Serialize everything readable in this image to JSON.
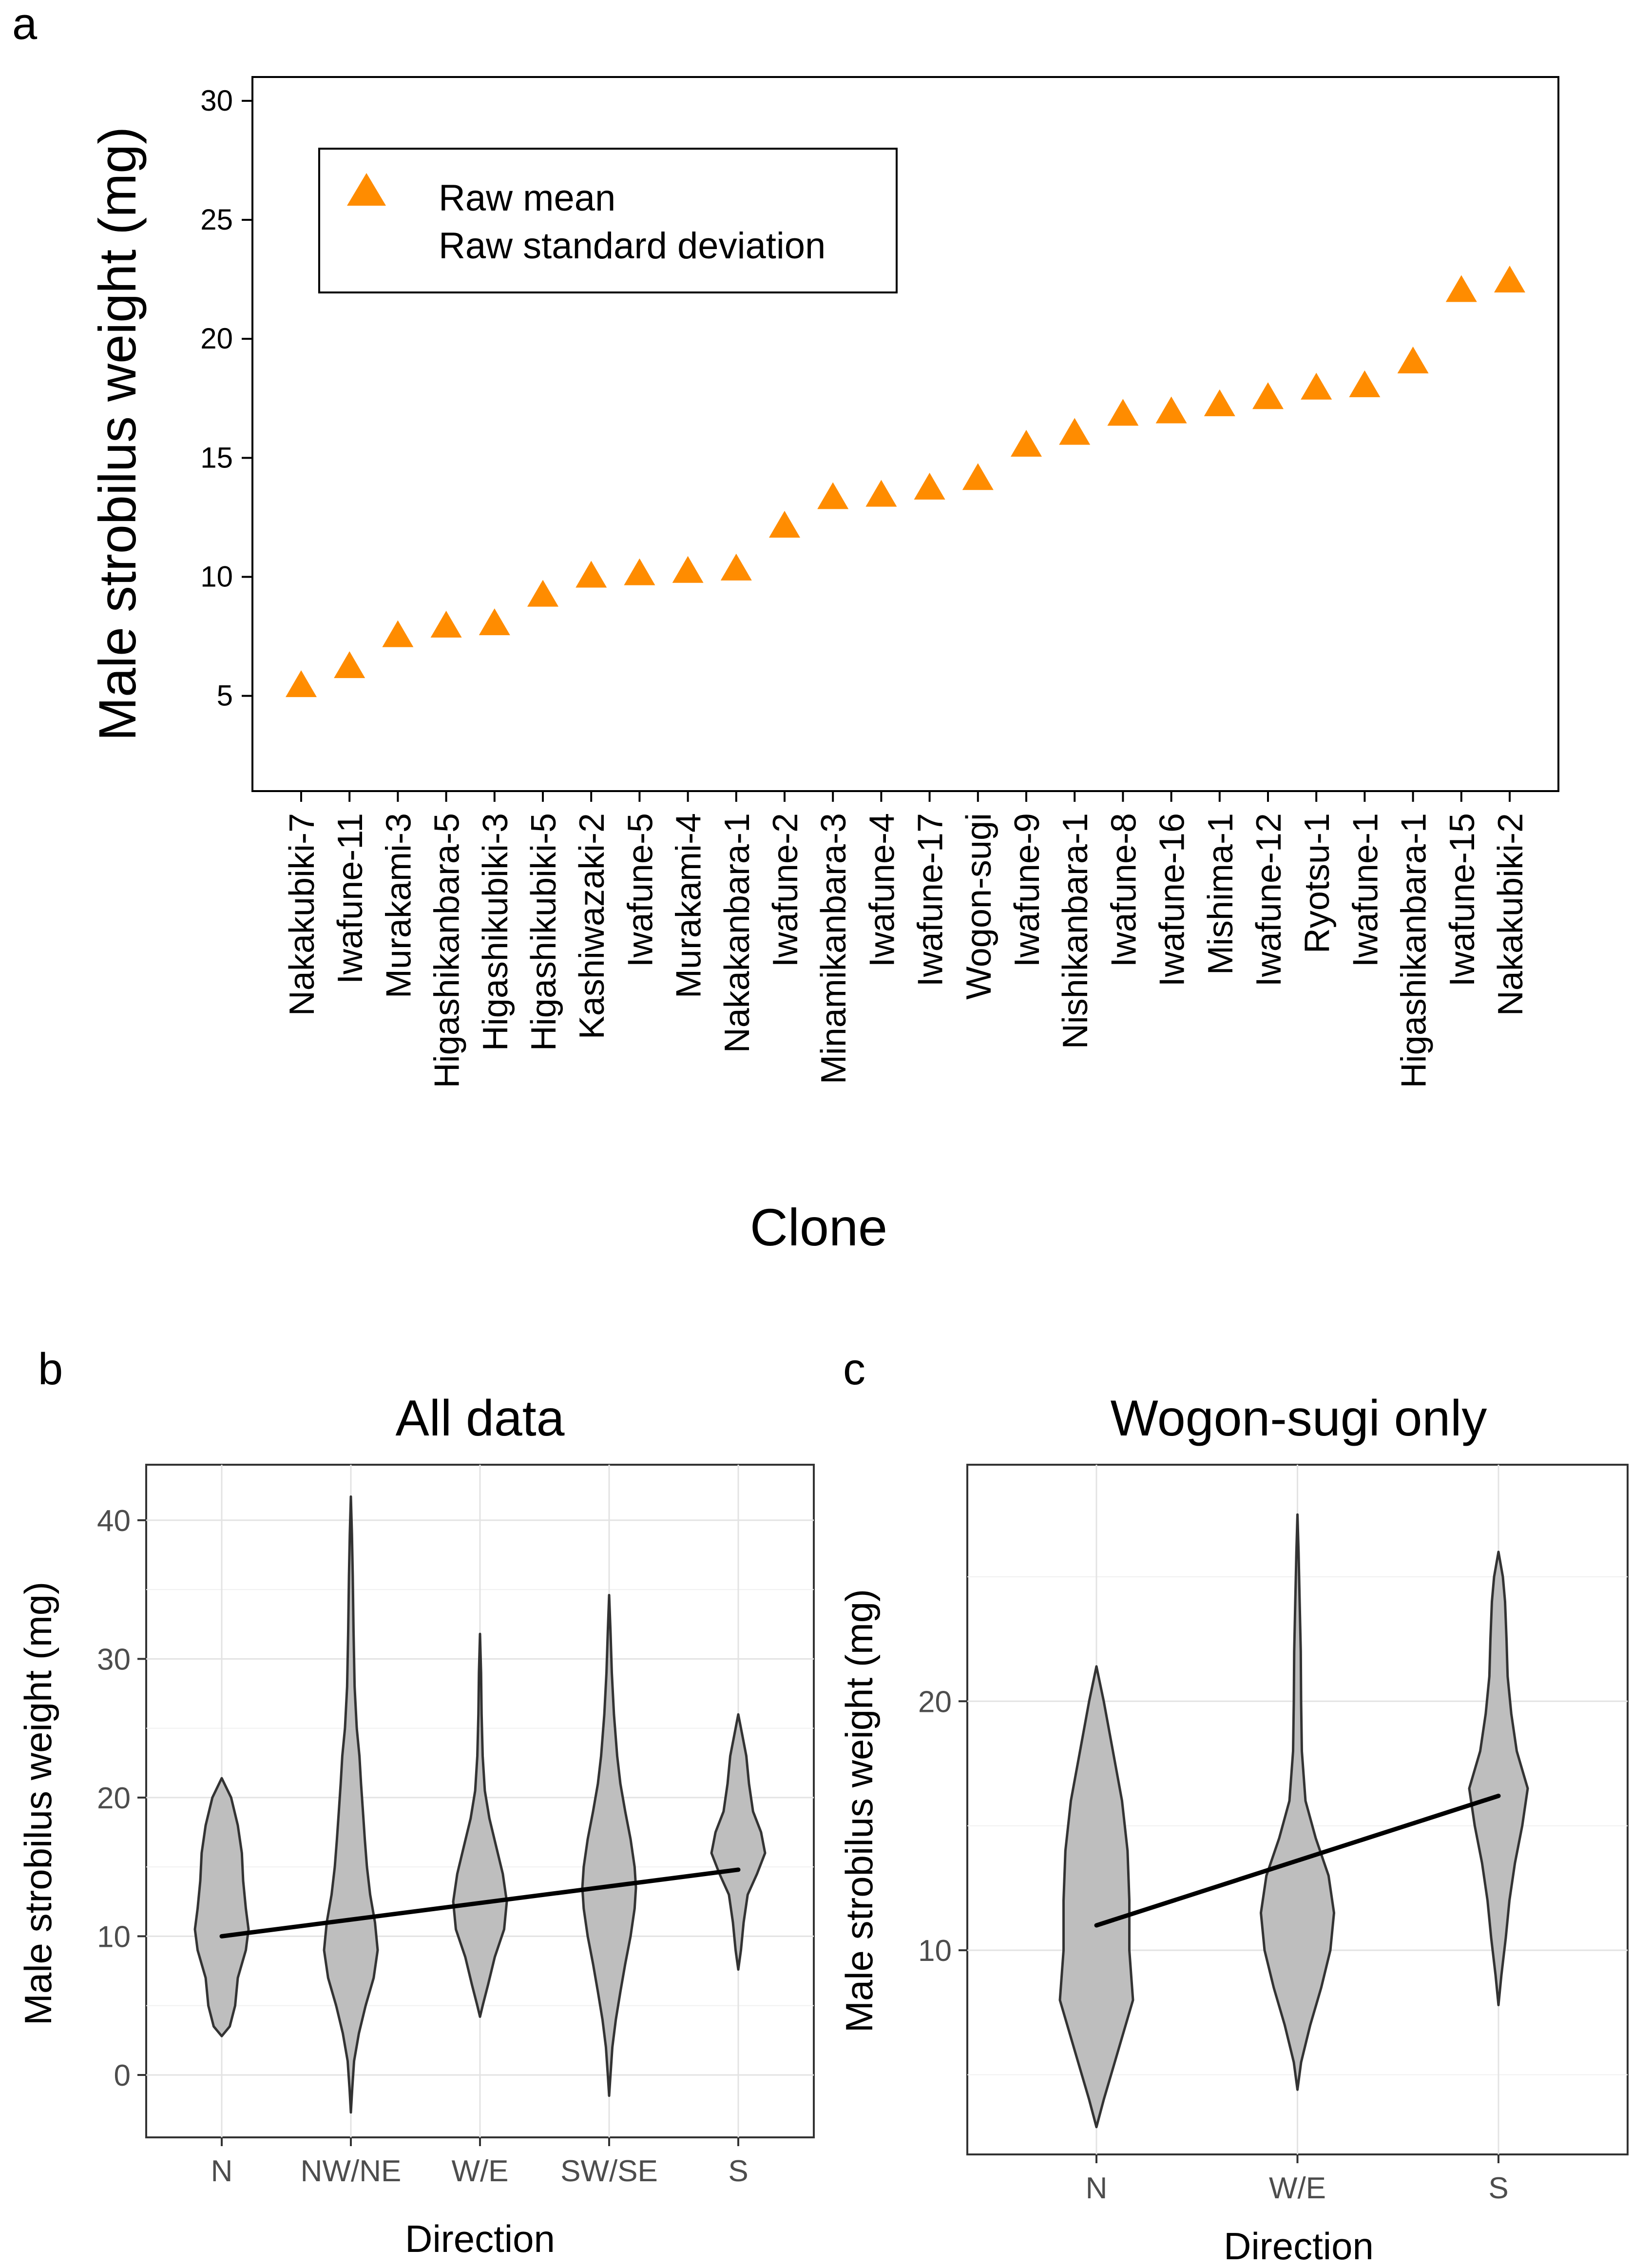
{
  "figure": {
    "panel_labels": [
      "a",
      "b",
      "c"
    ]
  },
  "chart_data": [
    {
      "type": "scatter",
      "panel": "a",
      "title": "",
      "xlabel": "Clone",
      "ylabel": "Male strobilus weight (mg)",
      "ylim": [
        1,
        31
      ],
      "yticks": [
        5,
        10,
        15,
        20,
        25,
        30
      ],
      "legend": {
        "placement": "top-left",
        "entries": [
          "Raw mean",
          "Raw standard deviation"
        ]
      },
      "marker_color": "#ff8c00",
      "categories": [
        "Nakakubiki-7",
        "Iwafune-11",
        "Murakami-3",
        "Higashikanbara-5",
        "Higashikubiki-3",
        "Higashikubiki-5",
        "Kashiwazaki-2",
        "Iwafune-5",
        "Murakami-4",
        "Nakakanbara-1",
        "Iwafune-2",
        "Minamikanbara-3",
        "Iwafune-4",
        "Iwafune-17",
        "Wogon-sugi",
        "Iwafune-9",
        "Nishikanbara-1",
        "Iwafune-8",
        "Iwafune-16",
        "Mishima-1",
        "Iwafune-12",
        "Ryotsu-1",
        "Iwafune-1",
        "Higashikanbara-1",
        "Iwafune-15",
        "Nakakubiki-2"
      ],
      "values": [
        5.4,
        6.2,
        7.5,
        7.9,
        8.0,
        9.2,
        10.0,
        10.1,
        10.2,
        10.3,
        12.1,
        13.3,
        13.4,
        13.7,
        14.1,
        15.5,
        16.0,
        16.8,
        16.9,
        17.2,
        17.5,
        17.9,
        18.0,
        19.0,
        22.0,
        22.4
      ]
    },
    {
      "type": "violin",
      "panel": "b",
      "title": "All data",
      "xlabel": "Direction",
      "ylabel": "Male strobilus weight (mg)",
      "ylim": [
        -4.5,
        44
      ],
      "yticks": [
        0,
        10,
        20,
        30,
        40
      ],
      "categories": [
        "N",
        "NW/NE",
        "W/E",
        "SW/SE",
        "S"
      ],
      "fill_color": "#bebebe",
      "violins": [
        {
          "name": "N",
          "min": 2.8,
          "max": 21.4,
          "profile": [
            [
              2.8,
              0.0
            ],
            [
              3.5,
              0.3
            ],
            [
              5.0,
              0.5
            ],
            [
              7.0,
              0.6
            ],
            [
              9.0,
              0.9
            ],
            [
              10.5,
              1.0
            ],
            [
              12.0,
              0.9
            ],
            [
              14.0,
              0.8
            ],
            [
              16.0,
              0.75
            ],
            [
              18.0,
              0.6
            ],
            [
              20.0,
              0.35
            ],
            [
              21.4,
              0.0
            ]
          ]
        },
        {
          "name": "NW/NE",
          "min": -2.7,
          "max": 41.7,
          "profile": [
            [
              -2.7,
              0.0
            ],
            [
              -1.0,
              0.05
            ],
            [
              1.0,
              0.12
            ],
            [
              3.0,
              0.3
            ],
            [
              5.0,
              0.55
            ],
            [
              7.0,
              0.85
            ],
            [
              9.0,
              1.0
            ],
            [
              11.0,
              0.9
            ],
            [
              13.0,
              0.72
            ],
            [
              15.0,
              0.6
            ],
            [
              17.0,
              0.52
            ],
            [
              19.0,
              0.45
            ],
            [
              21.0,
              0.38
            ],
            [
              23.0,
              0.32
            ],
            [
              25.0,
              0.22
            ],
            [
              28.0,
              0.14
            ],
            [
              32.0,
              0.1
            ],
            [
              36.0,
              0.07
            ],
            [
              39.0,
              0.04
            ],
            [
              41.7,
              0.0
            ]
          ]
        },
        {
          "name": "W/E",
          "min": 4.2,
          "max": 31.8,
          "profile": [
            [
              4.2,
              0.0
            ],
            [
              5.0,
              0.1
            ],
            [
              6.5,
              0.3
            ],
            [
              8.5,
              0.55
            ],
            [
              10.5,
              0.9
            ],
            [
              12.5,
              1.0
            ],
            [
              14.5,
              0.85
            ],
            [
              16.5,
              0.6
            ],
            [
              18.5,
              0.35
            ],
            [
              20.5,
              0.18
            ],
            [
              23.0,
              0.1
            ],
            [
              26.0,
              0.06
            ],
            [
              29.0,
              0.04
            ],
            [
              31.8,
              0.0
            ]
          ]
        },
        {
          "name": "SW/SE",
          "min": -1.5,
          "max": 34.6,
          "profile": [
            [
              -1.5,
              0.0
            ],
            [
              0.0,
              0.05
            ],
            [
              2.0,
              0.12
            ],
            [
              4.0,
              0.25
            ],
            [
              6.0,
              0.42
            ],
            [
              8.0,
              0.6
            ],
            [
              10.0,
              0.8
            ],
            [
              12.0,
              0.95
            ],
            [
              13.5,
              1.0
            ],
            [
              15.0,
              0.95
            ],
            [
              17.0,
              0.8
            ],
            [
              19.0,
              0.6
            ],
            [
              21.0,
              0.42
            ],
            [
              23.0,
              0.3
            ],
            [
              26.0,
              0.18
            ],
            [
              29.0,
              0.1
            ],
            [
              32.0,
              0.05
            ],
            [
              34.6,
              0.0
            ]
          ]
        },
        {
          "name": "S",
          "min": 7.6,
          "max": 26.0,
          "profile": [
            [
              7.6,
              0.0
            ],
            [
              9.0,
              0.1
            ],
            [
              11.0,
              0.2
            ],
            [
              13.0,
              0.35
            ],
            [
              14.5,
              0.7
            ],
            [
              16.0,
              1.0
            ],
            [
              17.5,
              0.85
            ],
            [
              19.0,
              0.55
            ],
            [
              21.0,
              0.4
            ],
            [
              23.0,
              0.3
            ],
            [
              24.5,
              0.15
            ],
            [
              26.0,
              0.0
            ]
          ]
        }
      ],
      "trend_line": [
        [
          1,
          10.0
        ],
        [
          5,
          14.8
        ]
      ]
    },
    {
      "type": "violin",
      "panel": "c",
      "title": "Wogon-sugi only",
      "xlabel": "Direction",
      "ylabel": "Male strobilus weight (mg)",
      "ylim": [
        1.8,
        29.5
      ],
      "yticks": [
        10,
        20
      ],
      "categories": [
        "N",
        "W/E",
        "S"
      ],
      "fill_color": "#bebebe",
      "violins": [
        {
          "name": "N",
          "min": 2.9,
          "max": 21.4,
          "profile": [
            [
              2.9,
              0.0
            ],
            [
              4.0,
              0.2
            ],
            [
              6.0,
              0.6
            ],
            [
              8.0,
              1.0
            ],
            [
              10.0,
              0.9
            ],
            [
              12.0,
              0.9
            ],
            [
              14.0,
              0.85
            ],
            [
              16.0,
              0.7
            ],
            [
              18.0,
              0.45
            ],
            [
              20.0,
              0.2
            ],
            [
              21.4,
              0.0
            ]
          ]
        },
        {
          "name": "W/E",
          "min": 4.4,
          "max": 27.5,
          "profile": [
            [
              4.4,
              0.0
            ],
            [
              5.5,
              0.1
            ],
            [
              7.0,
              0.35
            ],
            [
              8.5,
              0.65
            ],
            [
              10.0,
              0.9
            ],
            [
              11.5,
              1.0
            ],
            [
              13.0,
              0.85
            ],
            [
              14.5,
              0.5
            ],
            [
              16.0,
              0.22
            ],
            [
              18.0,
              0.12
            ],
            [
              20.0,
              0.1
            ],
            [
              22.0,
              0.09
            ],
            [
              24.0,
              0.06
            ],
            [
              26.0,
              0.03
            ],
            [
              27.5,
              0.0
            ]
          ]
        },
        {
          "name": "S",
          "min": 7.8,
          "max": 26.0,
          "profile": [
            [
              7.8,
              0.0
            ],
            [
              9.0,
              0.08
            ],
            [
              10.5,
              0.2
            ],
            [
              12.0,
              0.3
            ],
            [
              13.5,
              0.45
            ],
            [
              15.0,
              0.65
            ],
            [
              16.5,
              0.8
            ],
            [
              18.0,
              0.5
            ],
            [
              19.5,
              0.35
            ],
            [
              21.0,
              0.25
            ],
            [
              22.5,
              0.22
            ],
            [
              24.0,
              0.18
            ],
            [
              25.0,
              0.12
            ],
            [
              26.0,
              0.0
            ]
          ]
        }
      ],
      "trend_line": [
        [
          1,
          11.0
        ],
        [
          3,
          16.2
        ]
      ]
    }
  ]
}
